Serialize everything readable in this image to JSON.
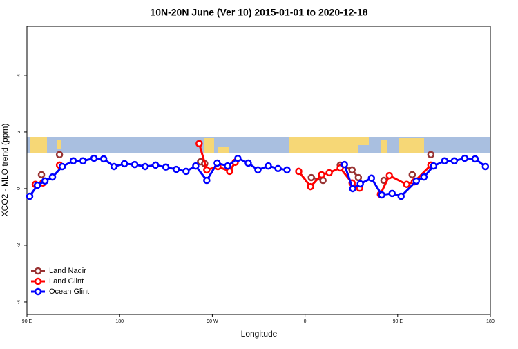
{
  "chart_data": {
    "type": "line",
    "title": "10N-20N June (Ver 10)   2015-01-01 to 2020-12-18",
    "x_label": "Longitude",
    "y_label": "XCO2 - MLO trend (ppm)",
    "xlim": [
      90,
      540
    ],
    "xticks": [
      {
        "value": 90,
        "label": "90 E"
      },
      180,
      {
        "value": 270,
        "label": "90 W"
      },
      {
        "value": 360,
        "label": "0"
      },
      {
        "value": 450,
        "label": "90 E"
      },
      {
        "value": 540,
        "label": "180"
      }
    ],
    "ylim": [
      -4.44,
      5.73
    ],
    "yticks": [
      -4,
      -2,
      0,
      2,
      4
    ],
    "legend": "bottom-left",
    "series": [
      {
        "name": "Land Nadir",
        "color": "#993333",
        "x": [
          104.1,
          null,
          121.6,
          null,
          258.6,
          262.6,
          null,
          366.1,
          377.5,
          null,
          394.2,
          405.7,
          411.8,
          null,
          436.6,
          null,
          464.1,
          null,
          482.2
        ],
        "values": [
          0.49,
          null,
          1.2,
          null,
          0.95,
          0.88,
          null,
          0.39,
          0.29,
          null,
          0.83,
          0.66,
          0.39,
          null,
          0.29,
          null,
          0.49,
          null,
          1.2
        ]
      },
      {
        "name": "Land Glint",
        "color": "#ff0000",
        "x": [
          98.1,
          105.4,
          null,
          121.6,
          null,
          257.2,
          264.6,
          275.4,
          286.8,
          292.2,
          null,
          353.9,
          365.4,
          376.1,
          383.5,
          394.2,
          405.7,
          413.0,
          null,
          433.2,
          441.9,
          458.7,
          466.1,
          482.2
        ],
        "values": [
          0.15,
          0.2,
          null,
          0.83,
          null,
          1.59,
          0.66,
          0.78,
          0.61,
          0.93,
          null,
          0.61,
          0.07,
          0.49,
          0.56,
          0.73,
          0.2,
          0.02,
          null,
          -0.2,
          0.46,
          0.15,
          0.24,
          0.83
        ]
      },
      {
        "name": "Ocean Glint",
        "color": "#0000ff",
        "x": [
          92.7,
          100.1,
          107.5,
          114.8,
          124.3,
          135.0,
          144.4,
          155.1,
          164.5,
          174.6,
          184.7,
          194.7,
          204.8,
          214.9,
          224.9,
          235.0,
          244.5,
          253.9,
          264.6,
          274.7,
          284.8,
          294.8,
          304.9,
          314.3,
          324.4,
          333.8,
          342.5,
          null,
          398.3,
          406.3,
          413.7,
          424.5,
          434.5,
          444.6,
          453.3,
          468.1,
          475.5,
          484.9,
          495.6,
          505.0,
          515.1,
          525.2,
          535.2
        ],
        "values": [
          -0.27,
          0.12,
          0.27,
          0.41,
          0.78,
          0.98,
          0.98,
          1.07,
          1.05,
          0.78,
          0.88,
          0.85,
          0.78,
          0.83,
          0.76,
          0.68,
          0.61,
          0.8,
          0.29,
          0.9,
          0.8,
          1.07,
          0.9,
          0.66,
          0.8,
          0.71,
          0.66,
          null,
          0.85,
          0.0,
          0.17,
          0.37,
          -0.22,
          -0.17,
          -0.27,
          0.27,
          0.41,
          0.8,
          0.98,
          0.98,
          1.07,
          1.05,
          0.78
        ]
      }
    ]
  }
}
